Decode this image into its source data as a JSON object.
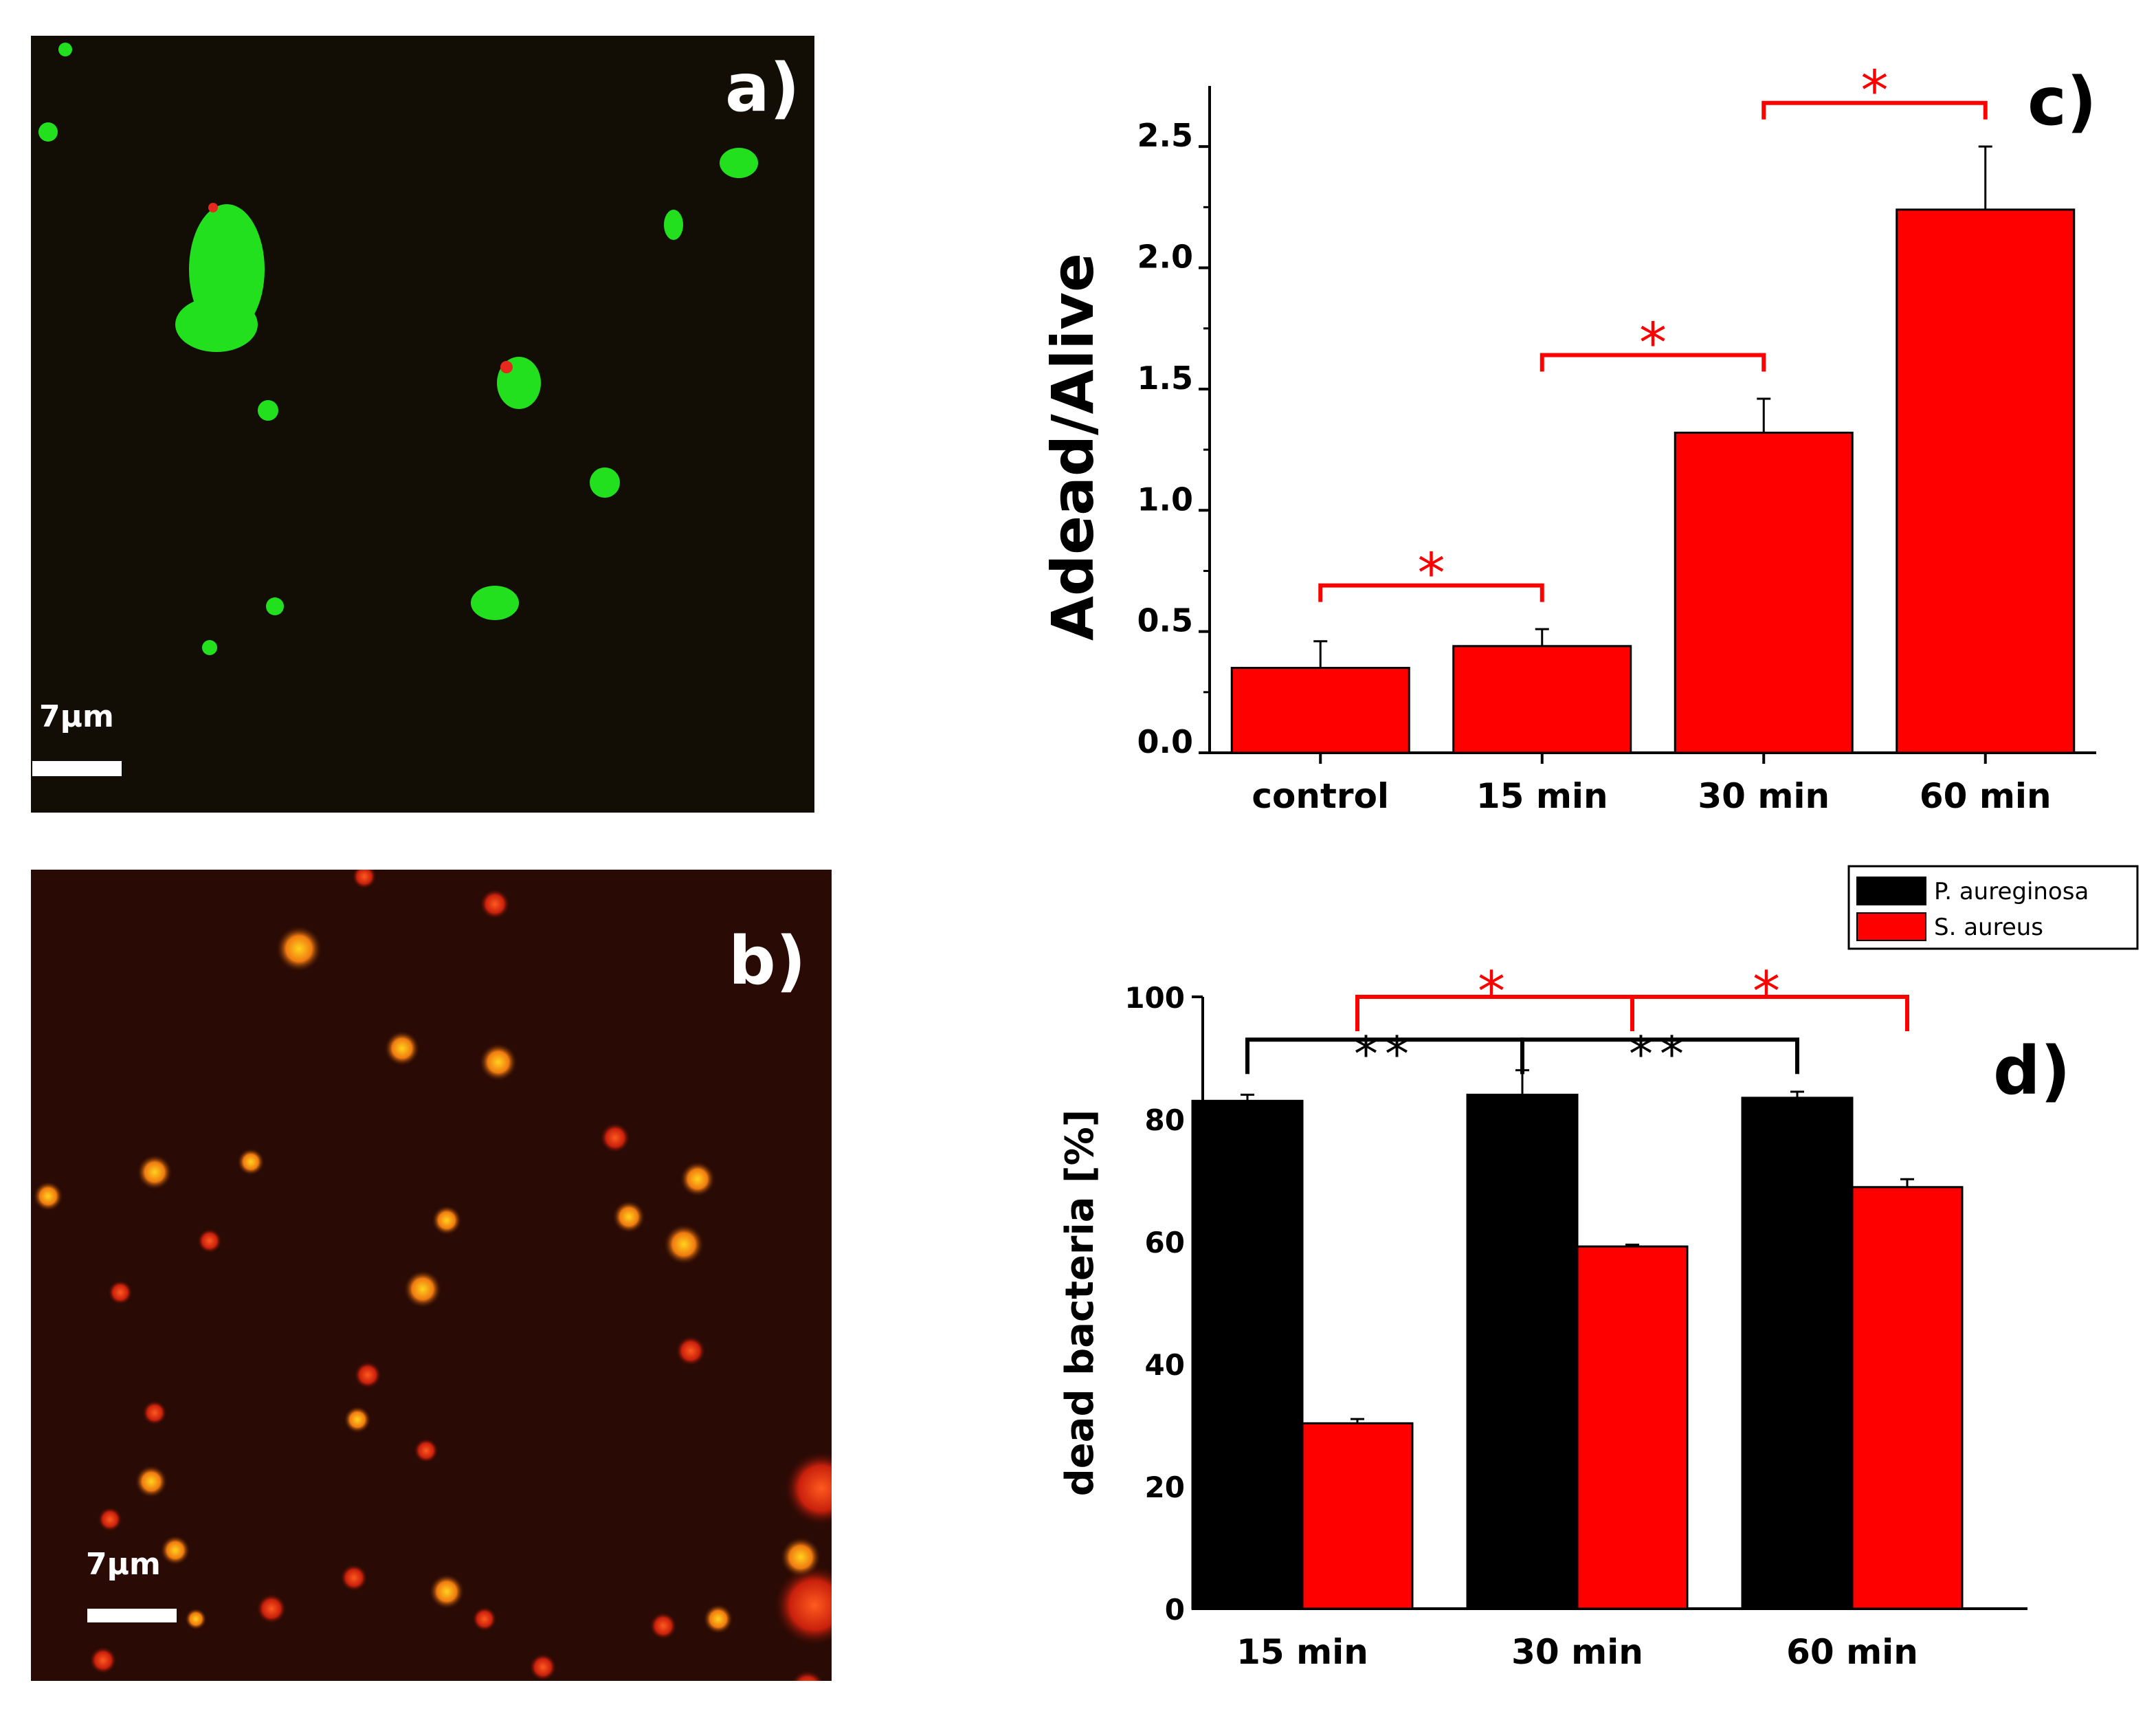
{
  "panels": {
    "a": {
      "letter": "a)",
      "scale_label": "7µm"
    },
    "b": {
      "letter": "b)",
      "scale_label": "7µm"
    },
    "c": {
      "letter": "c)"
    },
    "d": {
      "letter": "d)"
    }
  },
  "colors": {
    "live_stain": "#22e01e",
    "dead_stain": "#e6281e",
    "background_a": "#120e06",
    "background_b": "#2a0a04",
    "bar_red": "#ff0000",
    "bar_black": "#000000",
    "significance_red": "#ff0000",
    "significance_black": "#000000"
  },
  "chart_data": [
    {
      "id": "c",
      "type": "bar",
      "title": "",
      "xlabel": "",
      "ylabel": "Adead/Alive",
      "categories": [
        "control",
        "15 min",
        "30 min",
        "60 min"
      ],
      "series": [
        {
          "values": [
            0.35,
            0.44,
            1.32,
            2.24
          ],
          "errors": [
            0.11,
            0.07,
            0.14,
            0.26
          ],
          "color": "#ff0000"
        }
      ],
      "ylim": [
        0,
        2.75
      ],
      "yticks": [
        "0.0",
        "0.5",
        "1.0",
        "1.5",
        "2.0",
        "2.5"
      ],
      "significance": [
        {
          "from": 0,
          "to": 1,
          "label": "*",
          "color": "#ff0000"
        },
        {
          "from": 1,
          "to": 2,
          "label": "*",
          "color": "#ff0000"
        },
        {
          "from": 2,
          "to": 3,
          "label": "*",
          "color": "#ff0000"
        }
      ]
    },
    {
      "id": "d",
      "type": "bar",
      "title": "",
      "xlabel": "",
      "ylabel": "dead bacteria [%]",
      "categories": [
        "15 min",
        "30 min",
        "60 min"
      ],
      "series": [
        {
          "name": "P. aureginosa",
          "values": [
            83,
            84,
            83.5
          ],
          "errors": [
            1,
            4,
            1
          ],
          "color": "#000000"
        },
        {
          "name": "S. aureus",
          "values": [
            30.3,
            59.2,
            68.9
          ],
          "errors": [
            0.7,
            0.3,
            1.3
          ],
          "color": "#ff0000"
        }
      ],
      "ylim": [
        0,
        100
      ],
      "yticks": [
        "0",
        "20",
        "40",
        "60",
        "80",
        "100"
      ],
      "legend_position": "top-right",
      "significance": [
        {
          "series": 0,
          "from": 0,
          "to": 1,
          "label": "**",
          "color": "#000000"
        },
        {
          "series": 0,
          "from": 1,
          "to": 2,
          "label": "**",
          "color": "#000000"
        },
        {
          "series": 1,
          "from": 0,
          "to": 1,
          "label": "*",
          "color": "#ff0000"
        },
        {
          "series": 1,
          "from": 1,
          "to": 2,
          "label": "*",
          "color": "#ff0000"
        }
      ]
    }
  ]
}
